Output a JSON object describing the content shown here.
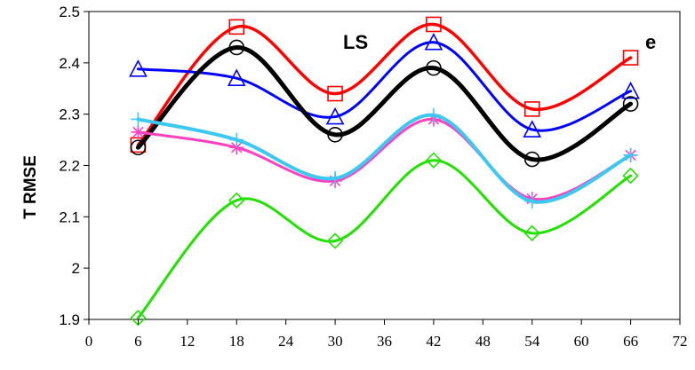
{
  "chart_data": {
    "type": "line",
    "smooth": true,
    "title": "",
    "xlabel": "",
    "ylabel": "T RMSE",
    "annotations": [
      "LS",
      "e"
    ],
    "xlim": [
      0,
      72
    ],
    "ylim": [
      1.9,
      2.5
    ],
    "x_ticks": [
      "0",
      "6",
      "12",
      "18",
      "24",
      "30",
      "36",
      "42",
      "48",
      "54",
      "60",
      "66",
      "72"
    ],
    "y_ticks": [
      "1.9",
      "2",
      "2.1",
      "2.2",
      "2.3",
      "2.4",
      "2.5"
    ],
    "grid": false,
    "legend": "none",
    "x": [
      6,
      18,
      30,
      42,
      54,
      66
    ],
    "series": [
      {
        "color": "#ff0000",
        "marker": "square",
        "values": [
          2.24,
          2.47,
          2.34,
          2.475,
          2.31,
          2.41
        ]
      },
      {
        "color": "#0000ff",
        "marker": "triangle",
        "values": [
          2.388,
          2.37,
          2.295,
          2.44,
          2.27,
          2.345
        ]
      },
      {
        "color": "#000000",
        "marker": "circle",
        "values": [
          2.235,
          2.43,
          2.26,
          2.39,
          2.212,
          2.32
        ]
      },
      {
        "color": "#ff40c0",
        "marker": "star",
        "values": [
          2.265,
          2.235,
          2.17,
          2.29,
          2.135,
          2.22
        ]
      },
      {
        "color": "#3cc8f0",
        "marker": "plus",
        "values": [
          2.29,
          2.25,
          2.175,
          2.298,
          2.13,
          2.22
        ]
      },
      {
        "color": "#22e000",
        "marker": "diamond",
        "values": [
          1.903,
          2.132,
          2.053,
          2.21,
          2.068,
          2.18
        ]
      }
    ]
  }
}
